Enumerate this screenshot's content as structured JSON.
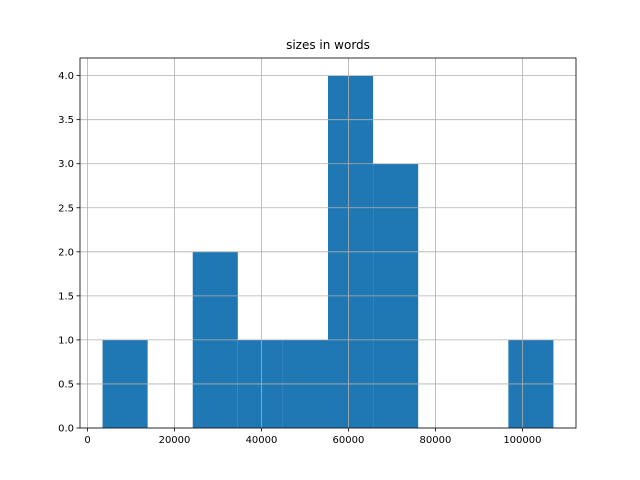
{
  "chart_data": {
    "type": "histogram",
    "title": "sizes in words",
    "bins": [
      3456,
      13824,
      24192,
      34560,
      44928,
      55296,
      65664,
      76032,
      86400,
      96768,
      107136
    ],
    "counts": [
      1,
      0,
      2,
      1,
      1,
      4,
      3,
      0,
      0,
      1
    ],
    "color": "#1f77b4",
    "xlim": [
      -1728,
      112320
    ],
    "xticks": [
      0,
      20000,
      40000,
      60000,
      80000,
      100000
    ],
    "ylim": [
      0,
      4.2
    ],
    "yticks": [
      {
        "value": 0,
        "label": "0.0"
      },
      {
        "value": 0.5,
        "label": "0.5"
      },
      {
        "value": 1,
        "label": "1.0"
      },
      {
        "value": 1.5,
        "label": "1.5"
      },
      {
        "value": 2,
        "label": "2.0"
      },
      {
        "value": 2.5,
        "label": "2.5"
      },
      {
        "value": 3,
        "label": "3.0"
      },
      {
        "value": 3.5,
        "label": "3.5"
      },
      {
        "value": 4,
        "label": "4.0"
      }
    ],
    "grid": true
  }
}
